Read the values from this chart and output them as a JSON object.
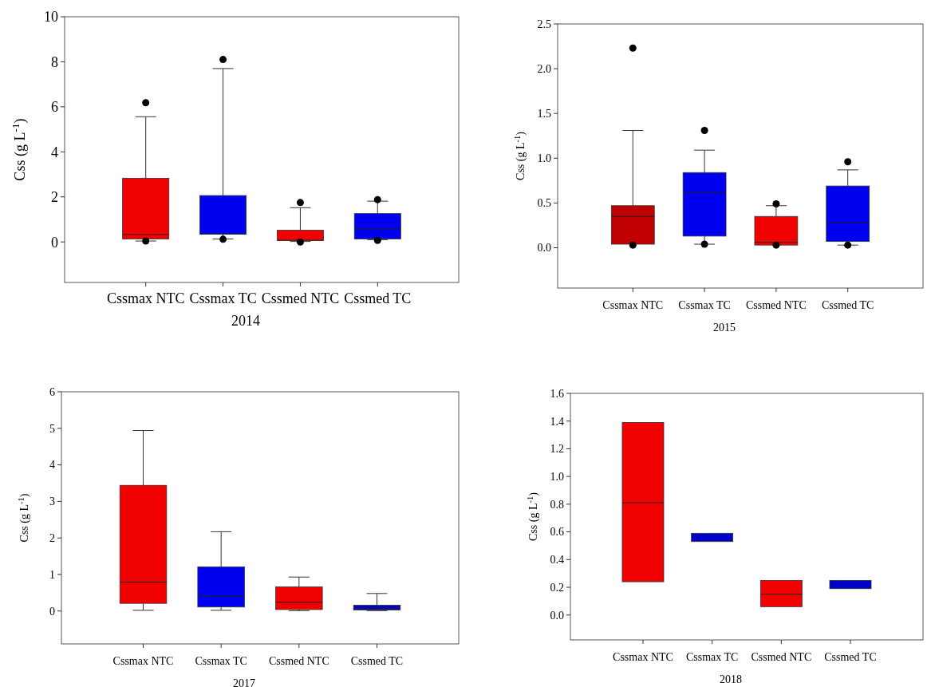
{
  "chart_data": [
    {
      "type": "box",
      "xlabel": "2014",
      "ylabel": "Css (g L$^{-1}$)",
      "categories": [
        "Cssmax NTC",
        "Cssmax TC",
        "Cssmed NTC",
        "Cssmed TC"
      ],
      "colors": [
        "#f00000",
        "#0000f0",
        "#f00000",
        "#0000f0"
      ],
      "ylim": [
        -1.8,
        10
      ],
      "yticks": [
        0,
        2,
        4,
        6,
        8,
        10
      ],
      "boxes": [
        {
          "low": 0.04,
          "q1": 0.13,
          "median": 0.33,
          "q3": 2.83,
          "high": 5.56,
          "outliers": [
            6.18,
            0.04
          ]
        },
        {
          "low": 0.13,
          "q1": 0.35,
          "median": 0.35,
          "q3": 2.06,
          "high": 7.7,
          "outliers": [
            8.1,
            0.12
          ]
        },
        {
          "low": 0.02,
          "q1": 0.07,
          "median": 0.07,
          "q3": 0.52,
          "high": 1.52,
          "outliers": [
            1.75,
            0
          ]
        },
        {
          "low": 0.1,
          "q1": 0.13,
          "median": 0.59,
          "q3": 1.26,
          "high": 1.81,
          "outliers": [
            1.88,
            0.07
          ]
        }
      ]
    },
    {
      "type": "box",
      "xlabel": "2015",
      "ylabel": "Css (g L$^{-1}$)",
      "categories": [
        "Cssmax NTC",
        "Cssmax TC",
        "Cssmed NTC",
        "Cssmed TC"
      ],
      "colors": [
        "#c00000",
        "#0000f0",
        "#f00000",
        "#0000f0"
      ],
      "ylim": [
        -0.45,
        2.5
      ],
      "yticks": [
        {
          "value": 0,
          "label": "0.0"
        },
        0.5,
        {
          "value": 1,
          "label": "1.0"
        },
        1.5,
        {
          "value": 2,
          "label": "2.0"
        },
        2.5
      ],
      "boxes": [
        {
          "low": 0.04,
          "q1": 0.04,
          "median": 0.35,
          "q3": 0.47,
          "high": 1.31,
          "outliers": [
            2.23,
            0.03
          ]
        },
        {
          "low": 0.04,
          "q1": 0.13,
          "median": 0.62,
          "q3": 0.84,
          "high": 1.09,
          "outliers": [
            1.31,
            0.04
          ]
        },
        {
          "low": 0.03,
          "q1": 0.03,
          "median": 0.06,
          "q3": 0.35,
          "high": 0.47,
          "outliers": [
            0.49,
            0.03
          ]
        },
        {
          "low": 0.03,
          "q1": 0.07,
          "median": 0.28,
          "q3": 0.69,
          "high": 0.87,
          "outliers": [
            0.96,
            0.03
          ]
        }
      ]
    },
    {
      "type": "box",
      "xlabel": "2017",
      "ylabel": "Css (g L$^{-1}$)",
      "categories": [
        "Cssmax NTC",
        "Cssmax TC",
        "Cssmed NTC",
        "Cssmed TC"
      ],
      "colors": [
        "#f00000",
        "#0000f0",
        "#f00000",
        "#0000c8"
      ],
      "ylim": [
        -0.9,
        6
      ],
      "yticks": [
        0,
        1,
        2,
        3,
        4,
        5,
        6
      ],
      "boxes": [
        {
          "low": 0.02,
          "q1": 0.21,
          "median": 0.79,
          "q3": 3.44,
          "high": 4.94
        },
        {
          "low": 0.02,
          "q1": 0.11,
          "median": 0.41,
          "q3": 1.21,
          "high": 2.17
        },
        {
          "low": 0.01,
          "q1": 0.04,
          "median": 0.24,
          "q3": 0.66,
          "high": 0.93
        },
        {
          "low": 0.01,
          "q1": 0.03,
          "median": 0.08,
          "q3": 0.16,
          "high": 0.48
        }
      ]
    },
    {
      "type": "box",
      "xlabel": "2018",
      "ylabel": "Css (g L$^{-1}$)",
      "categories": [
        "Cssmax NTC",
        "Cssmax TC",
        "Cssmed NTC",
        "Cssmed TC"
      ],
      "colors": [
        "#f00000",
        "#0000c8",
        "#f00000",
        "#0000c8"
      ],
      "ylim": [
        -0.18,
        1.6
      ],
      "yticks": [
        {
          "value": 0,
          "label": "0.0"
        },
        0.2,
        0.4,
        0.6,
        0.8,
        {
          "value": 1,
          "label": "1.0"
        },
        1.2,
        1.4,
        1.6
      ],
      "boxes": [
        {
          "low": 0.24,
          "q1": 0.24,
          "median": 0.81,
          "q3": 1.39,
          "high": 1.39
        },
        {
          "low": 0.53,
          "q1": 0.53,
          "median": null,
          "q3": 0.59,
          "high": 0.59
        },
        {
          "low": 0.06,
          "q1": 0.06,
          "median": 0.15,
          "q3": 0.25,
          "high": 0.25
        },
        {
          "low": 0.19,
          "q1": 0.19,
          "median": null,
          "q3": 0.25,
          "high": 0.25
        }
      ]
    }
  ]
}
